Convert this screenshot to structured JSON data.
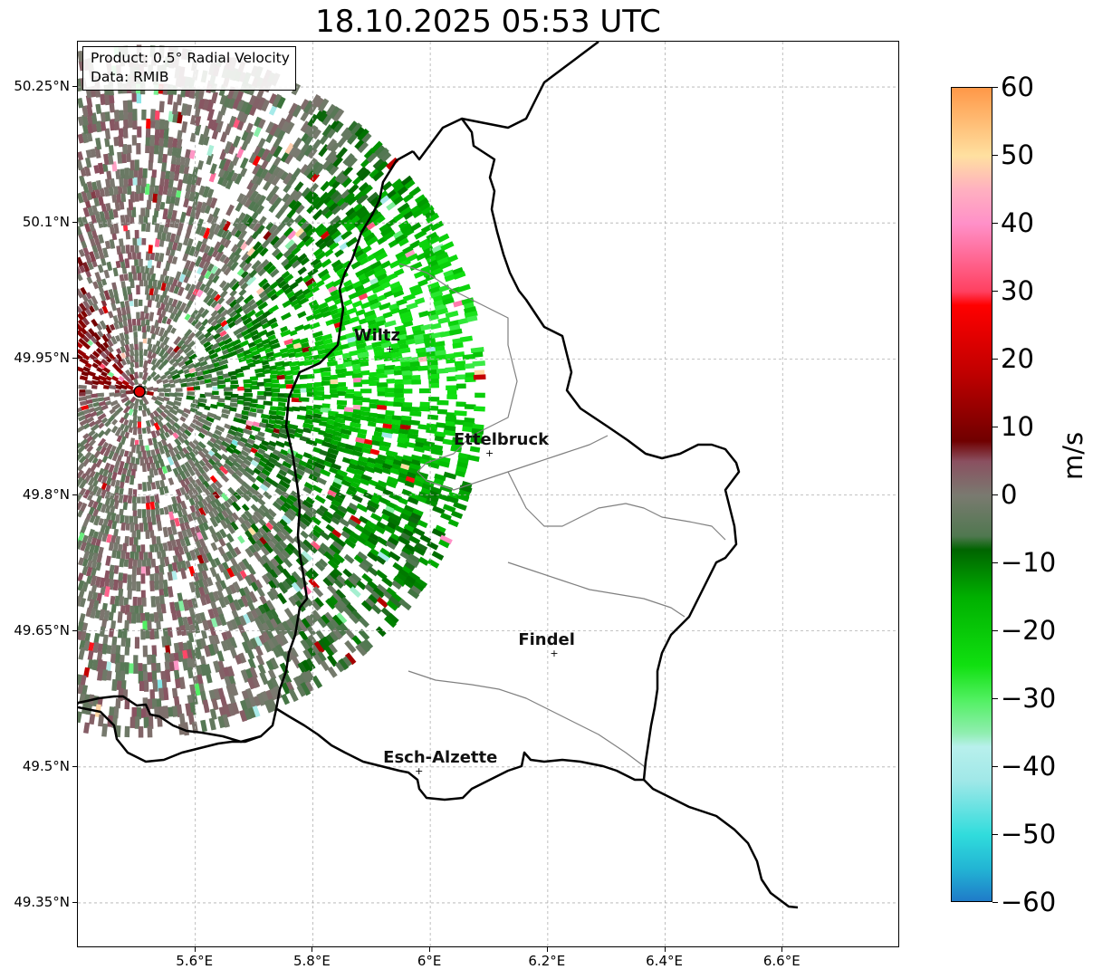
{
  "title": "18.10.2025 05:53 UTC",
  "info": {
    "product": "Product: 0.5° Radial Velocity",
    "data": "Data: RMIB"
  },
  "lat_ticks": [
    "50.25°N",
    "50.1°N",
    "49.95°N",
    "49.8°N",
    "49.65°N",
    "49.5°N",
    "49.35°N"
  ],
  "lon_ticks": [
    "5.6°E",
    "5.8°E",
    "6°E",
    "6.2°E",
    "6.4°E",
    "6.6°E"
  ],
  "map_extent": {
    "lon_min": 5.4,
    "lon_max": 6.8,
    "lat_min": 49.3,
    "lat_max": 50.3
  },
  "radar_site": {
    "lon": 5.505,
    "lat": 49.914,
    "color": "#e00000"
  },
  "cities": [
    {
      "name": "Wiltz",
      "lon": 5.93,
      "lat": 49.965
    },
    {
      "name": "Ettelbruck",
      "lon": 6.1,
      "lat": 49.85
    },
    {
      "name": "Findel",
      "lon": 6.21,
      "lat": 49.63
    },
    {
      "name": "Esch-Alzette",
      "lon": 5.98,
      "lat": 49.5
    }
  ],
  "colorbar": {
    "unit": "m/s",
    "min": -60,
    "max": 60,
    "ticks": [
      "60",
      "50",
      "40",
      "30",
      "20",
      "10",
      "0",
      "−10",
      "−20",
      "−30",
      "−40",
      "−50",
      "−60"
    ],
    "stops": [
      {
        "value": -60,
        "color": "#1f78c8"
      },
      {
        "value": -55,
        "color": "#22b4d4"
      },
      {
        "value": -50,
        "color": "#30dcdc"
      },
      {
        "value": -42,
        "color": "#a0e8e8"
      },
      {
        "value": -37,
        "color": "#b8f0ec"
      },
      {
        "value": -35,
        "color": "#90eeb0"
      },
      {
        "value": -30,
        "color": "#50f060"
      },
      {
        "value": -25,
        "color": "#10e010"
      },
      {
        "value": -15,
        "color": "#00b000"
      },
      {
        "value": -8,
        "color": "#006400"
      },
      {
        "value": -6,
        "color": "#507850"
      },
      {
        "value": 0,
        "color": "#7a7a70"
      },
      {
        "value": 5,
        "color": "#8a5060"
      },
      {
        "value": 8,
        "color": "#700000"
      },
      {
        "value": 18,
        "color": "#c00000"
      },
      {
        "value": 28,
        "color": "#ff0000"
      },
      {
        "value": 30,
        "color": "#ff4060"
      },
      {
        "value": 40,
        "color": "#ff90c8"
      },
      {
        "value": 45,
        "color": "#ffb0c0"
      },
      {
        "value": 50,
        "color": "#ffe0a0"
      },
      {
        "value": 60,
        "color": "#ff9848"
      }
    ]
  },
  "colors": {
    "border_national": "#000000",
    "border_regional": "#808080",
    "grid": "#b0b0b0"
  }
}
